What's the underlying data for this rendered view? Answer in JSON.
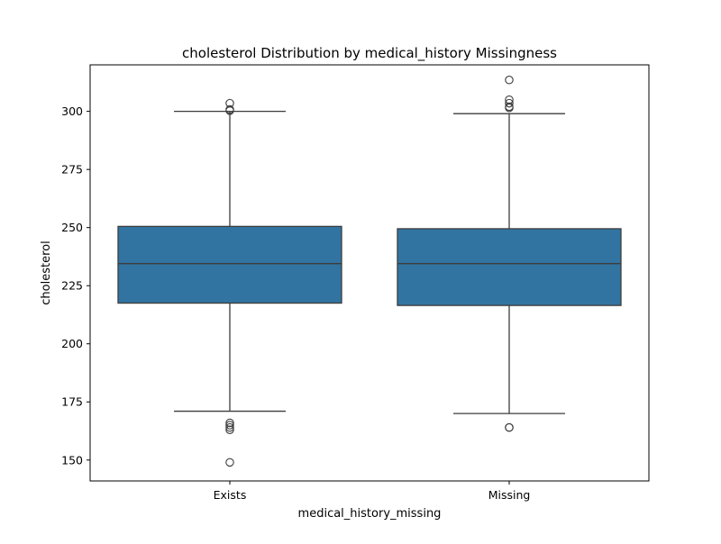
{
  "chart_data": {
    "type": "box",
    "title": "cholesterol Distribution by medical_history Missingness",
    "xlabel": "medical_history_missing",
    "ylabel": "cholesterol",
    "categories": [
      "Exists",
      "Missing"
    ],
    "ylim": [
      141,
      320
    ],
    "yticks": [
      150,
      175,
      200,
      225,
      250,
      275,
      300
    ],
    "grid": false,
    "legend": "none",
    "colors": {
      "box_fill": "#3274a1",
      "line": "#3d3d3d",
      "frame": "#000000"
    },
    "series": [
      {
        "category": "Exists",
        "whisker_low": 171,
        "q1": 217.5,
        "median": 234.5,
        "q3": 250.5,
        "whisker_high": 300,
        "outliers": [
          303.5,
          300.8,
          300.3,
          166,
          165,
          164,
          163,
          149
        ]
      },
      {
        "category": "Missing",
        "whisker_low": 170,
        "q1": 216.5,
        "median": 234.5,
        "q3": 249.5,
        "whisker_high": 299,
        "outliers": [
          313.5,
          305,
          303.5,
          302,
          301.5,
          164,
          164
        ]
      }
    ]
  }
}
